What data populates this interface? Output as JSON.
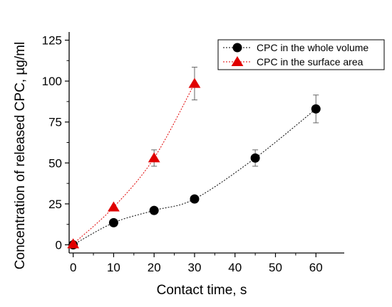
{
  "chart_data": {
    "type": "scatter",
    "xlabel": "Contact time, s",
    "ylabel": "Concentration of released CPC, µg/ml",
    "xlim": [
      -1,
      67
    ],
    "ylim": [
      -5,
      130
    ],
    "x_ticks": [
      0,
      10,
      20,
      30,
      40,
      50,
      60
    ],
    "y_ticks": [
      0,
      25,
      50,
      75,
      100,
      125
    ],
    "grid": false,
    "legend_position": "top-right",
    "series": [
      {
        "name": "CPC in the whole volume",
        "marker": "circle",
        "color": "#000000",
        "x": [
          0,
          10,
          20,
          30,
          45,
          60
        ],
        "y": [
          0,
          13.5,
          21,
          28,
          53,
          83
        ],
        "error": [
          0,
          0,
          0,
          0,
          5,
          8.5
        ]
      },
      {
        "name": "CPC in the surface area",
        "marker": "triangle",
        "color": "#e00000",
        "x": [
          0,
          10,
          20,
          30
        ],
        "y": [
          0.5,
          23,
          53,
          98.5
        ],
        "error": [
          0,
          0,
          5,
          10
        ]
      }
    ]
  }
}
